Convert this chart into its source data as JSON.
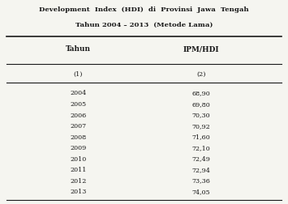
{
  "title_line1": "Development  Index  (HDI)  di  Provinsi  Jawa  Tengah",
  "title_line2": "Tahun 2004 – 2013  (Metode Lama)",
  "col1_header": "Tahun",
  "col2_header": "IPM/HDI",
  "col1_sub": "(1)",
  "col2_sub": "(2)",
  "years": [
    "2004",
    "2005",
    "2006",
    "2007",
    "2008",
    "2009",
    "2010",
    "2011",
    "2012",
    "2013"
  ],
  "values": [
    "68,90",
    "69,80",
    "70,30",
    "70,92",
    "71,60",
    "72,10",
    "72,49",
    "72,94",
    "73,36",
    "74,05"
  ],
  "bg_color": "#f5f5f0",
  "text_color": "#1a1a1a"
}
